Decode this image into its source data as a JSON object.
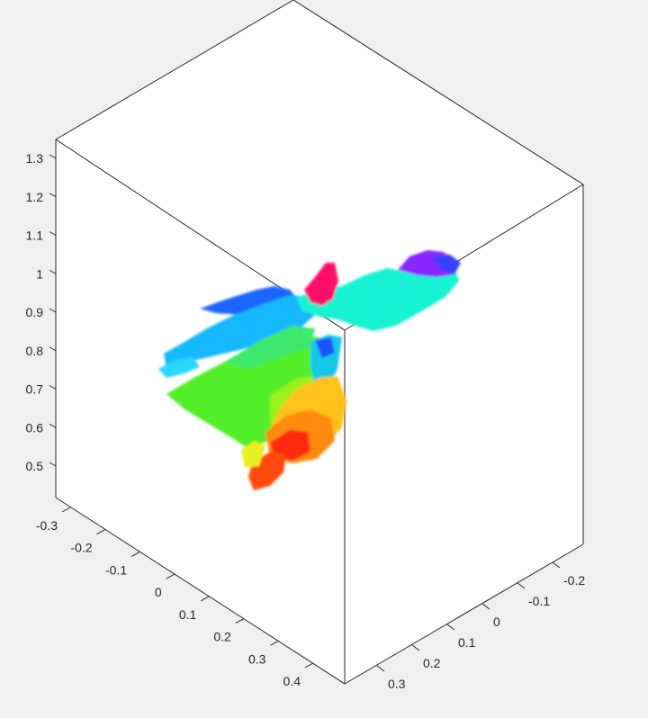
{
  "chart_data": {
    "type": "scatter3d",
    "title": "",
    "xlabel": "",
    "ylabel": "",
    "zlabel": "",
    "grid": false,
    "box": true,
    "colormap": "hsv",
    "axes": {
      "x": {
        "ticks": [
          -0.3,
          -0.2,
          -0.1,
          0,
          0.1,
          0.2,
          0.3,
          0.4
        ],
        "tick_labels": [
          "-0.3",
          "-0.2",
          "-0.1",
          "0",
          "0.1",
          "0.2",
          "0.3",
          "0.4"
        ]
      },
      "y": {
        "ticks": [
          -0.2,
          -0.1,
          0,
          0.1,
          0.2,
          0.3
        ],
        "tick_labels": [
          "-0.2",
          "-0.1",
          "0",
          "0.1",
          "0.2",
          "0.3"
        ]
      },
      "z": {
        "ticks": [
          0.5,
          0.6,
          0.7,
          0.8,
          0.9,
          1.0,
          1.1,
          1.2,
          1.3
        ],
        "tick_labels": [
          "0.5",
          "0.6",
          "0.7",
          "0.8",
          "0.9",
          "1",
          "1.1",
          "1.2",
          "1.3"
        ]
      }
    },
    "point_cloud_regions": [
      {
        "name": "red-orange lower fragment",
        "color": "#ff3a10",
        "x_range": [
          0.05,
          0.3
        ],
        "y_range": [
          0.0,
          0.15
        ],
        "z_range": [
          0.45,
          0.6
        ]
      },
      {
        "name": "yellow-orange lower fragment",
        "color": "#ffb000",
        "x_range": [
          0.0,
          0.25
        ],
        "y_range": [
          -0.05,
          0.05
        ],
        "z_range": [
          0.55,
          0.72
        ]
      },
      {
        "name": "green fan",
        "color": "#5ef02a",
        "x_range": [
          -0.05,
          0.25
        ],
        "y_range": [
          0.0,
          0.2
        ],
        "z_range": [
          0.6,
          0.8
        ]
      },
      {
        "name": "cyan body",
        "color": "#10f0d0",
        "x_range": [
          -0.2,
          0.1
        ],
        "y_range": [
          -0.15,
          0.05
        ],
        "z_range": [
          0.8,
          0.95
        ]
      },
      {
        "name": "blue left arm",
        "color": "#0a8cff",
        "x_range": [
          0.0,
          0.15
        ],
        "y_range": [
          0.0,
          0.25
        ],
        "z_range": [
          0.8,
          0.95
        ]
      },
      {
        "name": "magenta top fragment",
        "color": "#ff0a6a",
        "x_range": [
          -0.05,
          0.0
        ],
        "y_range": [
          -0.02,
          0.02
        ],
        "z_range": [
          0.95,
          1.0
        ]
      },
      {
        "name": "violet right tip",
        "color": "#8a28ff",
        "x_range": [
          -0.25,
          -0.15
        ],
        "y_range": [
          -0.25,
          -0.15
        ],
        "z_range": [
          0.95,
          1.05
        ]
      }
    ]
  }
}
